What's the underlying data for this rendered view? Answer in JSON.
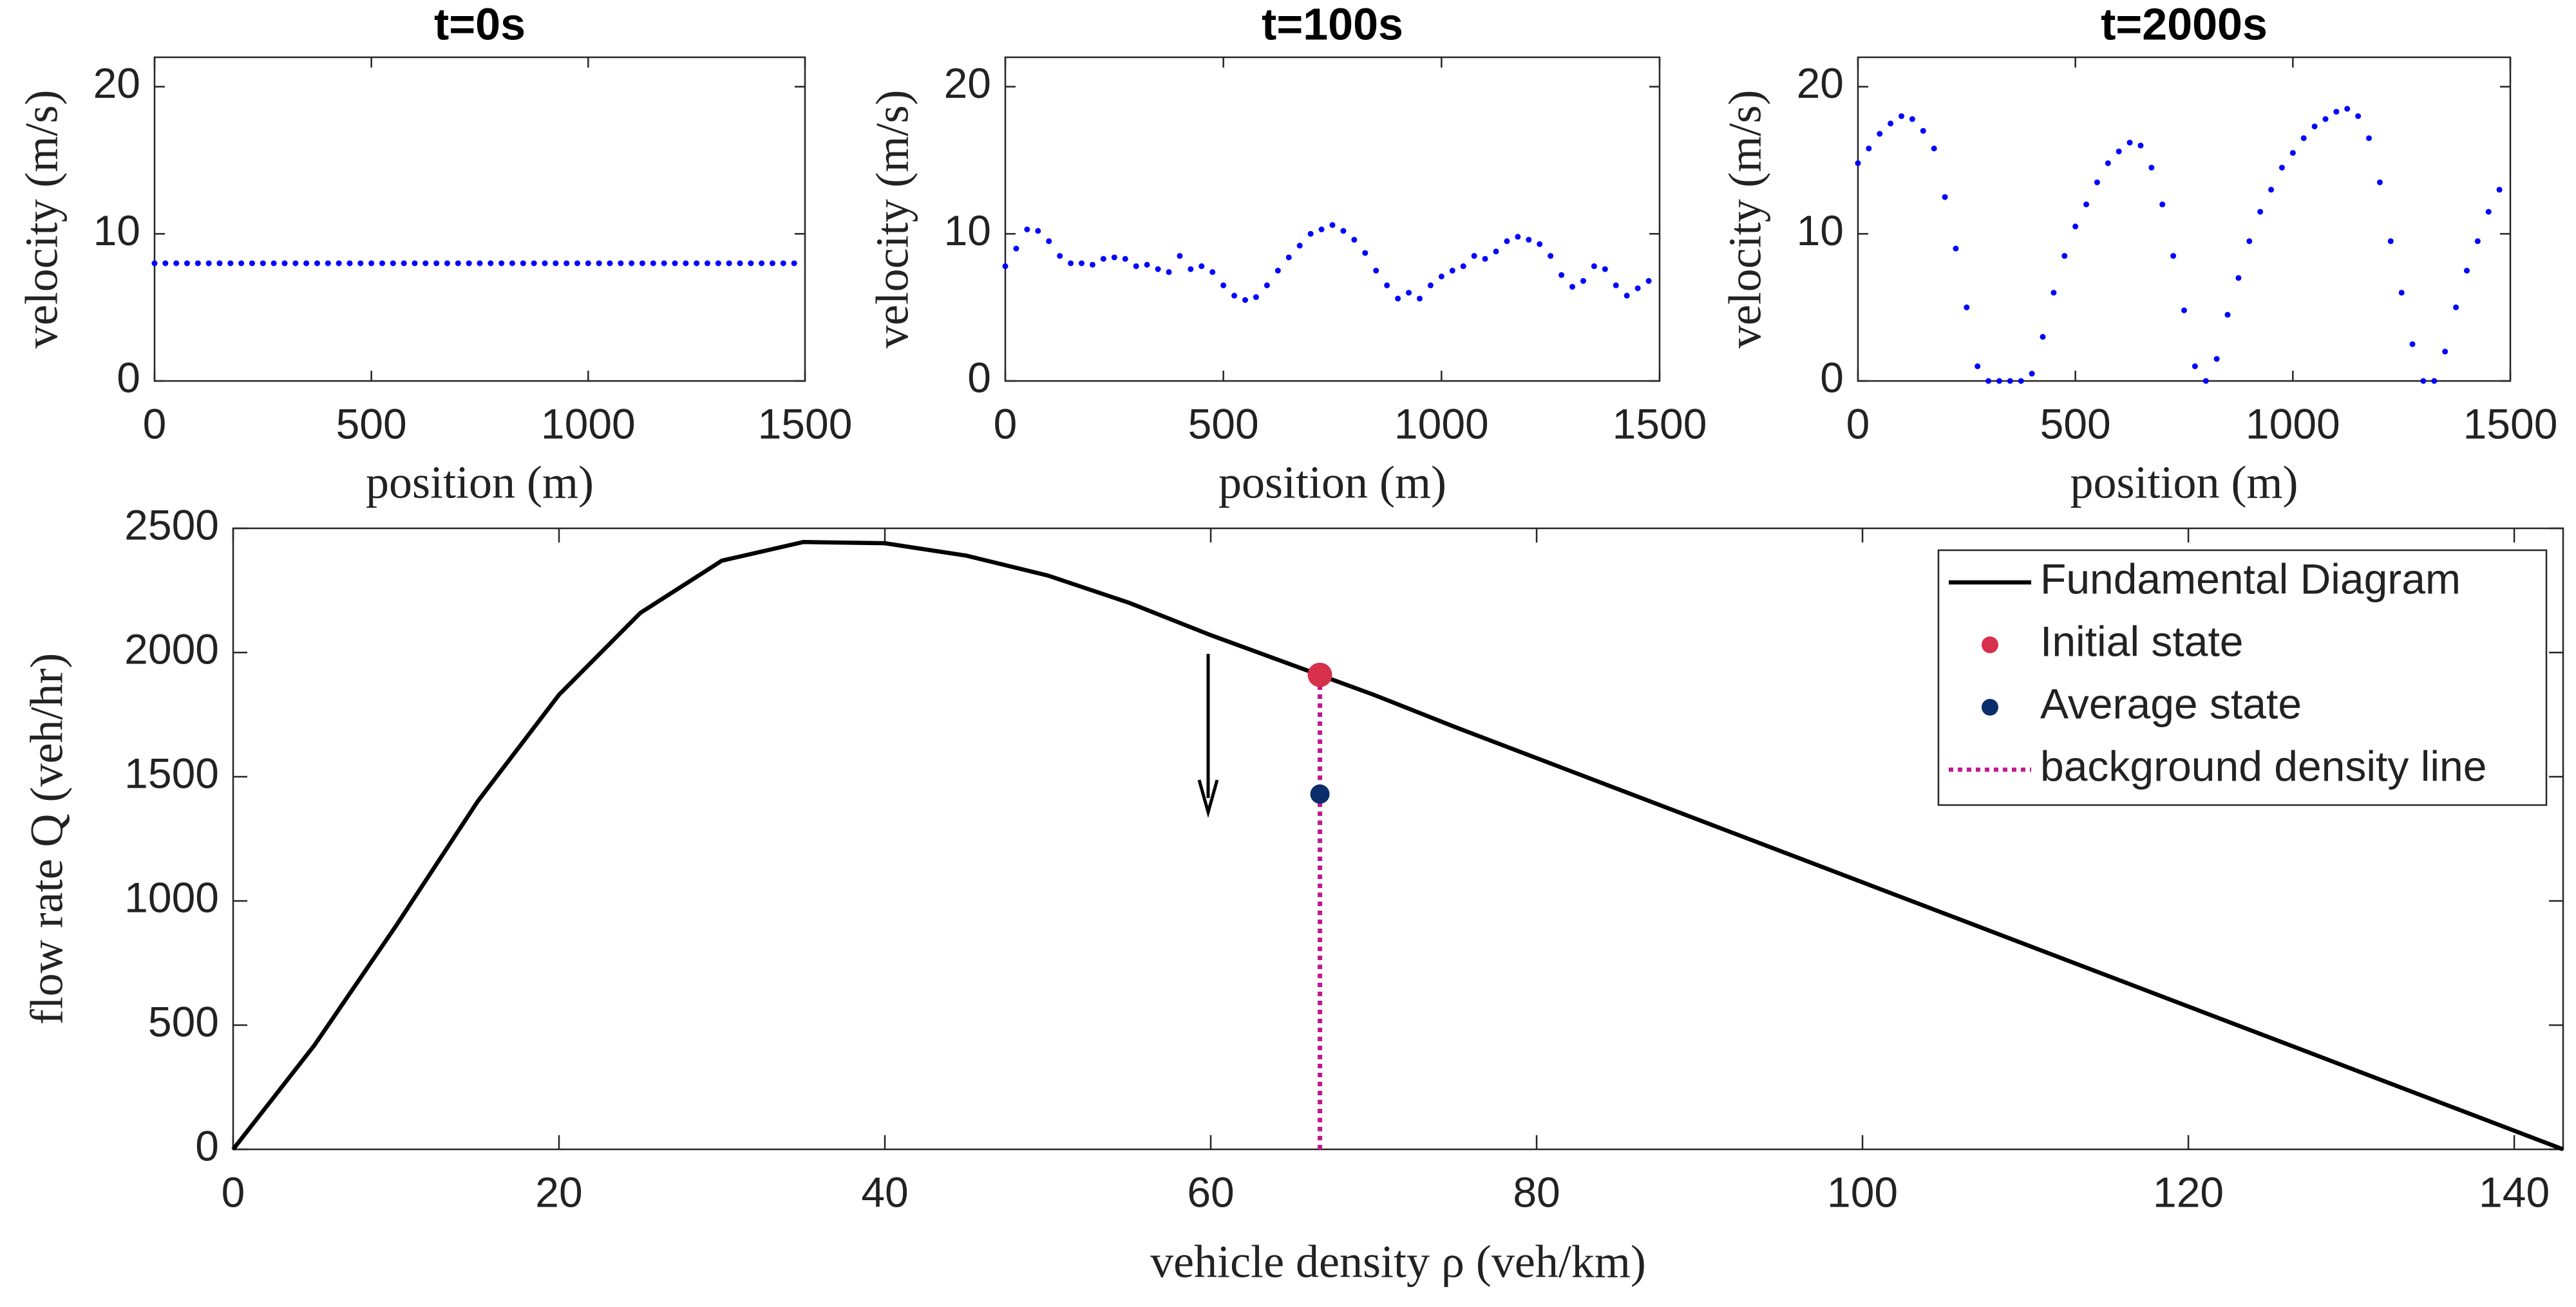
{
  "chart_data": [
    {
      "type": "scatter",
      "title": "t=0s",
      "xlabel": "position (m)",
      "ylabel": "velocity (m/s)",
      "color": "#0000ff",
      "x": [
        0,
        25,
        50,
        75,
        100,
        125,
        150,
        175,
        200,
        225,
        250,
        275,
        300,
        325,
        350,
        375,
        400,
        425,
        450,
        475,
        500,
        525,
        550,
        575,
        600,
        625,
        650,
        675,
        700,
        725,
        750,
        775,
        800,
        825,
        850,
        875,
        900,
        925,
        950,
        975,
        1000,
        1025,
        1050,
        1075,
        1100,
        1125,
        1150,
        1175,
        1200,
        1225,
        1250,
        1275,
        1300,
        1325,
        1350,
        1375,
        1400,
        1425,
        1450,
        1475
      ],
      "values": [
        8,
        8,
        8,
        8,
        8,
        8,
        8,
        8,
        8,
        8,
        8,
        8,
        8,
        8,
        8,
        8,
        8,
        8,
        8,
        8,
        8,
        8,
        8,
        8,
        8,
        8,
        8,
        8,
        8,
        8,
        8,
        8,
        8,
        8,
        8,
        8,
        8,
        8,
        8,
        8,
        8,
        8,
        8,
        8,
        8,
        8,
        8,
        8,
        8,
        8,
        8,
        8,
        8,
        8,
        8,
        8,
        8,
        8,
        8,
        8
      ],
      "xlim": [
        0,
        1500
      ],
      "xticks": [
        0,
        500,
        1000,
        1500
      ],
      "ylim": [
        0,
        22
      ],
      "yticks": [
        0,
        10,
        20
      ]
    },
    {
      "type": "scatter",
      "title": "t=100s",
      "xlabel": "position (m)",
      "ylabel": "velocity (m/s)",
      "color": "#0000ff",
      "x": [
        0,
        25,
        50,
        75,
        100,
        125,
        150,
        175,
        200,
        225,
        250,
        275,
        300,
        325,
        350,
        375,
        400,
        425,
        450,
        475,
        500,
        525,
        550,
        575,
        600,
        625,
        650,
        675,
        700,
        725,
        750,
        775,
        800,
        825,
        850,
        875,
        900,
        925,
        950,
        975,
        1000,
        1025,
        1050,
        1075,
        1100,
        1125,
        1150,
        1175,
        1200,
        1225,
        1250,
        1275,
        1300,
        1325,
        1350,
        1375,
        1400,
        1425,
        1450,
        1475
      ],
      "values": [
        7.8,
        9,
        10.3,
        10.2,
        9.5,
        8.5,
        8,
        8,
        7.9,
        8.3,
        8.4,
        8.3,
        7.8,
        7.9,
        7.6,
        7.4,
        8.5,
        7.6,
        7.8,
        7.4,
        6.5,
        5.8,
        5.5,
        5.7,
        6.5,
        7.5,
        8.4,
        9.2,
        10,
        10.3,
        10.6,
        10.2,
        9.6,
        8.7,
        7.5,
        6.5,
        5.6,
        6,
        5.6,
        6.5,
        7.1,
        7.5,
        7.8,
        8.5,
        8.3,
        8.8,
        9.5,
        9.8,
        9.6,
        9.3,
        8.5,
        7.2,
        6.4,
        6.8,
        7.8,
        7.6,
        6.5,
        5.8,
        6.3,
        6.8
      ],
      "xlim": [
        0,
        1500
      ],
      "xticks": [
        0,
        500,
        1000,
        1500
      ],
      "ylim": [
        0,
        22
      ],
      "yticks": [
        0,
        10,
        20
      ]
    },
    {
      "type": "scatter",
      "title": "t=2000s",
      "xlabel": "position (m)",
      "ylabel": "velocity (m/s)",
      "color": "#0000ff",
      "x": [
        0,
        25,
        50,
        75,
        100,
        125,
        150,
        175,
        200,
        225,
        250,
        275,
        300,
        325,
        350,
        375,
        400,
        425,
        450,
        475,
        500,
        525,
        550,
        575,
        600,
        625,
        650,
        675,
        700,
        725,
        750,
        775,
        800,
        825,
        850,
        875,
        900,
        925,
        950,
        975,
        1000,
        1025,
        1050,
        1075,
        1100,
        1125,
        1150,
        1175,
        1200,
        1225,
        1250,
        1275,
        1300,
        1325,
        1350,
        1375,
        1400,
        1425,
        1450,
        1475
      ],
      "values": [
        14.8,
        15.8,
        16.8,
        17.5,
        18,
        17.8,
        17,
        15.8,
        12.5,
        9,
        5,
        1,
        0,
        0,
        0,
        0,
        0.5,
        3,
        6,
        8.5,
        10.5,
        12,
        13.5,
        14.8,
        15.6,
        16.2,
        16,
        14.5,
        12,
        8.5,
        4.8,
        1,
        0,
        1.5,
        4.5,
        7,
        9.5,
        11.5,
        13,
        14.5,
        15.5,
        16.5,
        17.3,
        17.8,
        18.3,
        18.5,
        18,
        16.5,
        13.5,
        9.5,
        6,
        2.5,
        0,
        0,
        2,
        5,
        7.5,
        9.5,
        11.5,
        13
      ],
      "xlim": [
        0,
        1500
      ],
      "xticks": [
        0,
        500,
        1000,
        1500
      ],
      "ylim": [
        0,
        22
      ],
      "yticks": [
        0,
        10,
        20
      ]
    },
    {
      "type": "line",
      "xlabel": "vehicle density ρ (veh/km)",
      "ylabel": "flow rate Q (veh/hr)",
      "legend": "upper right",
      "xlim": [
        0,
        143
      ],
      "xticks": [
        0,
        20,
        40,
        60,
        80,
        100,
        120,
        140
      ],
      "ylim": [
        0,
        2500
      ],
      "yticks": [
        0,
        500,
        1000,
        1500,
        2000,
        2500
      ],
      "series": [
        {
          "name": "Fundamental Diagram",
          "style": "line",
          "color": "#000000",
          "x": [
            0,
            5,
            10,
            15,
            20,
            25,
            30,
            35,
            40,
            45,
            50,
            55,
            60,
            65,
            70,
            75,
            80,
            85,
            90,
            95,
            100,
            105,
            110,
            115,
            120,
            125,
            130,
            135,
            140,
            143
          ],
          "values": [
            0,
            420,
            900,
            1400,
            1830,
            2160,
            2370,
            2445,
            2440,
            2390,
            2310,
            2200,
            2070,
            1950,
            1830,
            1700,
            1575,
            1450,
            1325,
            1200,
            1075,
            950,
            825,
            700,
            575,
            450,
            325,
            200,
            75,
            0
          ]
        },
        {
          "name": "Initial state",
          "style": "marker",
          "color": "#d6304a",
          "x": [
            66.7
          ],
          "values": [
            1910
          ]
        },
        {
          "name": "Average state",
          "style": "marker",
          "color": "#0c2d6b",
          "x": [
            66.7
          ],
          "values": [
            1430
          ]
        },
        {
          "name": "background density line",
          "style": "dotted",
          "color": "#c0188c",
          "x": [
            66.7,
            66.7
          ],
          "values": [
            0,
            1910
          ]
        }
      ]
    }
  ]
}
